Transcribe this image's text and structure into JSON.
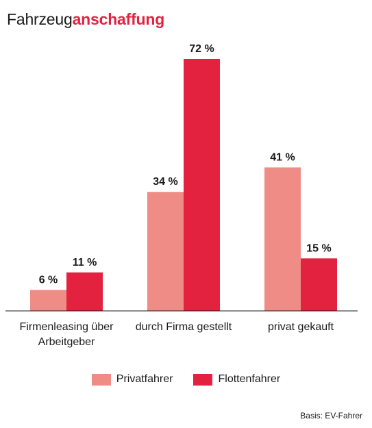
{
  "title": {
    "plain": "Fahrzeug",
    "accent": "anschaffung"
  },
  "colors": {
    "private": "#f08c86",
    "fleet": "#e3223f",
    "accent": "#e3223f"
  },
  "source_note": "Basis: EV-Fahrer",
  "chart_data": {
    "type": "bar",
    "categories": [
      [
        "Firmenleasing über",
        "Arbeitgeber"
      ],
      [
        "durch Firma gestellt"
      ],
      [
        "privat gekauft"
      ]
    ],
    "series": [
      {
        "name": "Privatfahrer",
        "values": [
          6,
          34,
          41
        ],
        "labels": [
          "6 %",
          "34 %",
          "41 %"
        ]
      },
      {
        "name": "Flottenfahrer",
        "values": [
          11,
          72,
          15
        ],
        "labels": [
          "11 %",
          "72 %",
          "15 %"
        ]
      }
    ],
    "ylim": [
      0,
      72
    ],
    "grid": false,
    "legend_position": "bottom"
  }
}
